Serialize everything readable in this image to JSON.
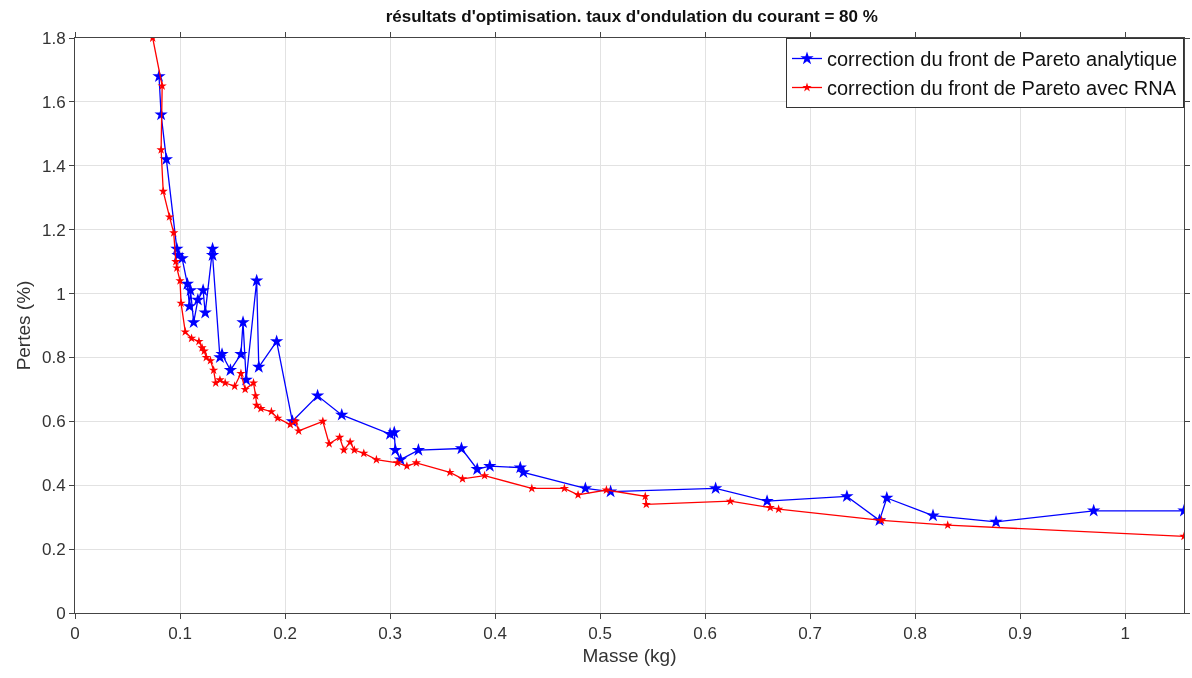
{
  "chart_data": {
    "type": "line",
    "title": "résultats d'optimisation. taux d'ondulation du courant = 80 %",
    "xlabel": "Masse (kg)",
    "ylabel": "Pertes (%)",
    "xlim": [
      0,
      1.056
    ],
    "ylim": [
      0,
      1.8
    ],
    "xticks": [
      0,
      0.1,
      0.2,
      0.3,
      0.4,
      0.5,
      0.6,
      0.7,
      0.8,
      0.9,
      1
    ],
    "yticks": [
      0,
      0.2,
      0.4,
      0.6,
      0.8,
      1,
      1.2,
      1.4,
      1.6,
      1.8
    ],
    "grid": true,
    "legend": "top right",
    "marker": "star",
    "line_style": "solid",
    "series": [
      {
        "name": "correction du front de Pareto analytique",
        "color": "#0000ff",
        "x": [
          0.08,
          0.082,
          0.087,
          0.097,
          0.098,
          0.102,
          0.107,
          0.109,
          0.11,
          0.113,
          0.117,
          0.122,
          0.124,
          0.131,
          0.131,
          0.138,
          0.14,
          0.148,
          0.158,
          0.16,
          0.163,
          0.173,
          0.175,
          0.192,
          0.207,
          0.231,
          0.254,
          0.3,
          0.304,
          0.305,
          0.31,
          0.327,
          0.368,
          0.383,
          0.395,
          0.424,
          0.427,
          0.486,
          0.51,
          0.61,
          0.659,
          0.735,
          0.766,
          0.773,
          0.817,
          0.877,
          0.97,
          1.056
        ],
        "values": [
          1.68,
          1.56,
          1.42,
          1.14,
          1.12,
          1.11,
          1.03,
          0.96,
          1.01,
          0.91,
          0.98,
          1.01,
          0.94,
          1.14,
          1.12,
          0.8,
          0.81,
          0.76,
          0.81,
          0.91,
          0.73,
          1.04,
          0.77,
          0.85,
          0.6,
          0.68,
          0.62,
          0.56,
          0.565,
          0.51,
          0.48,
          0.51,
          0.515,
          0.45,
          0.46,
          0.455,
          0.44,
          0.39,
          0.38,
          0.39,
          0.35,
          0.365,
          0.29,
          0.36,
          0.305,
          0.285,
          0.32,
          0.32
        ]
      },
      {
        "name": "correction du front de Pareto avec RNA",
        "color": "#ff0000",
        "x": [
          0.074,
          0.083,
          0.082,
          0.084,
          0.09,
          0.094,
          0.096,
          0.097,
          0.1,
          0.101,
          0.105,
          0.111,
          0.118,
          0.121,
          0.123,
          0.125,
          0.129,
          0.132,
          0.134,
          0.138,
          0.143,
          0.152,
          0.158,
          0.162,
          0.17,
          0.172,
          0.173,
          0.177,
          0.187,
          0.193,
          0.205,
          0.21,
          0.213,
          0.236,
          0.242,
          0.252,
          0.256,
          0.262,
          0.266,
          0.275,
          0.287,
          0.307,
          0.316,
          0.325,
          0.357,
          0.369,
          0.39,
          0.435,
          0.466,
          0.479,
          0.506,
          0.543,
          0.544,
          0.624,
          0.662,
          0.67,
          0.768,
          0.831,
          1.056
        ],
        "values": [
          1.8,
          1.65,
          1.45,
          1.32,
          1.24,
          1.19,
          1.1,
          1.08,
          1.04,
          0.97,
          0.88,
          0.86,
          0.85,
          0.83,
          0.82,
          0.8,
          0.79,
          0.76,
          0.72,
          0.73,
          0.72,
          0.71,
          0.75,
          0.7,
          0.72,
          0.68,
          0.65,
          0.64,
          0.63,
          0.61,
          0.59,
          0.6,
          0.57,
          0.6,
          0.53,
          0.55,
          0.51,
          0.535,
          0.51,
          0.5,
          0.48,
          0.47,
          0.46,
          0.47,
          0.44,
          0.42,
          0.43,
          0.39,
          0.39,
          0.37,
          0.385,
          0.365,
          0.34,
          0.35,
          0.33,
          0.325,
          0.29,
          0.275,
          0.24
        ]
      }
    ]
  }
}
